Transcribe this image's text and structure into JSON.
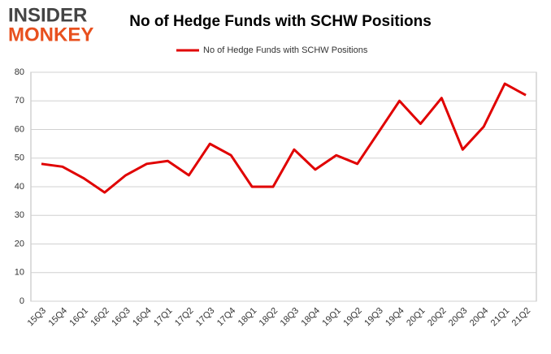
{
  "logo": {
    "line1": "INSIDER",
    "line2": "MONKEY"
  },
  "chart_data": {
    "type": "line",
    "title": "No of Hedge Funds with SCHW Positions",
    "categories": [
      "15Q3",
      "15Q4",
      "16Q1",
      "16Q2",
      "16Q3",
      "16Q4",
      "17Q1",
      "17Q2",
      "17Q3",
      "17Q4",
      "18Q1",
      "18Q2",
      "18Q3",
      "18Q4",
      "19Q1",
      "19Q2",
      "19Q3",
      "19Q4",
      "20Q1",
      "20Q2",
      "20Q3",
      "20Q4",
      "21Q1",
      "21Q2"
    ],
    "series": [
      {
        "name": "No of Hedge Funds with SCHW Positions",
        "color": "#e00000",
        "values": [
          48,
          47,
          43,
          38,
          44,
          48,
          49,
          44,
          55,
          51,
          40,
          40,
          53,
          46,
          51,
          48,
          59,
          70,
          62,
          71,
          53,
          61,
          76,
          72
        ]
      }
    ],
    "ylim": [
      0,
      80
    ],
    "yticks": [
      0,
      10,
      20,
      30,
      40,
      50,
      60,
      70,
      80
    ],
    "grid": true,
    "legend": "top"
  }
}
